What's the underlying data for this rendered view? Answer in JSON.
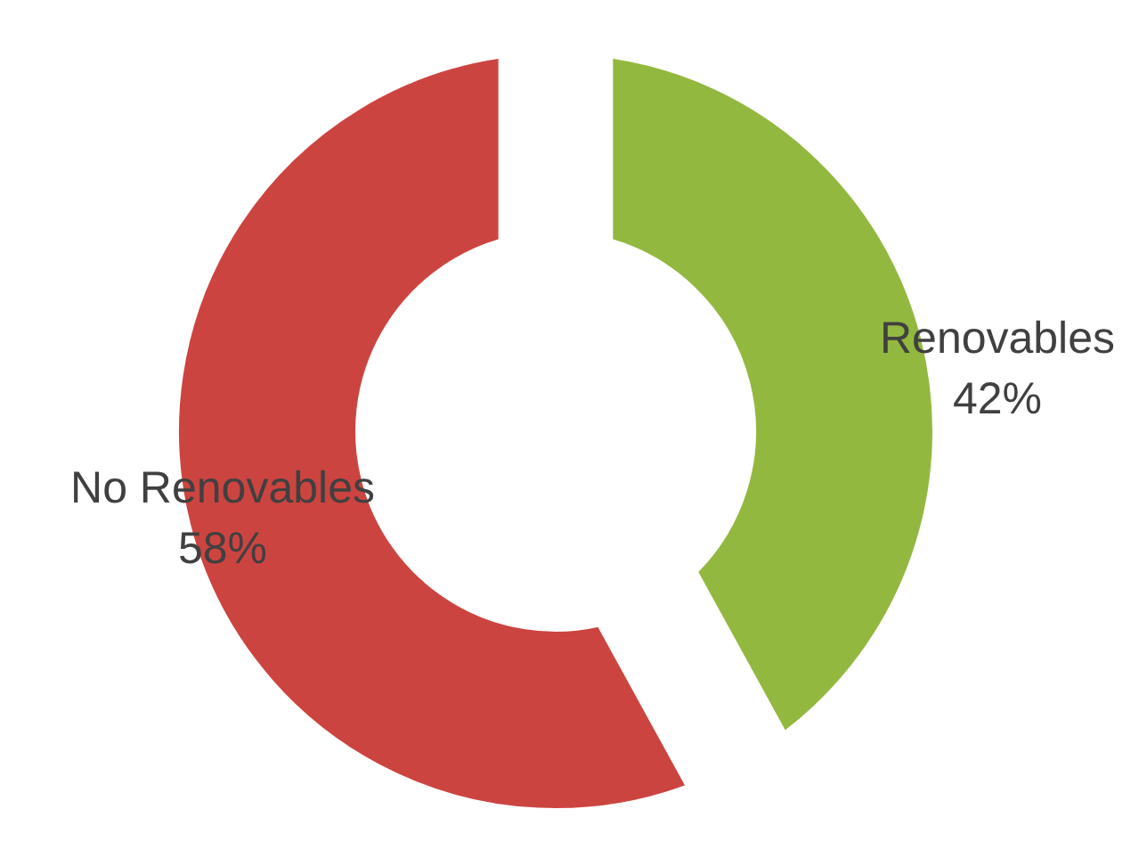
{
  "chart_data": {
    "type": "donut",
    "categories": [
      "No Renovables",
      "Renovables"
    ],
    "values": [
      58,
      42
    ],
    "colors": [
      "#cc4440",
      "#93b83f"
    ],
    "value_labels": [
      "58%",
      "42%"
    ]
  }
}
